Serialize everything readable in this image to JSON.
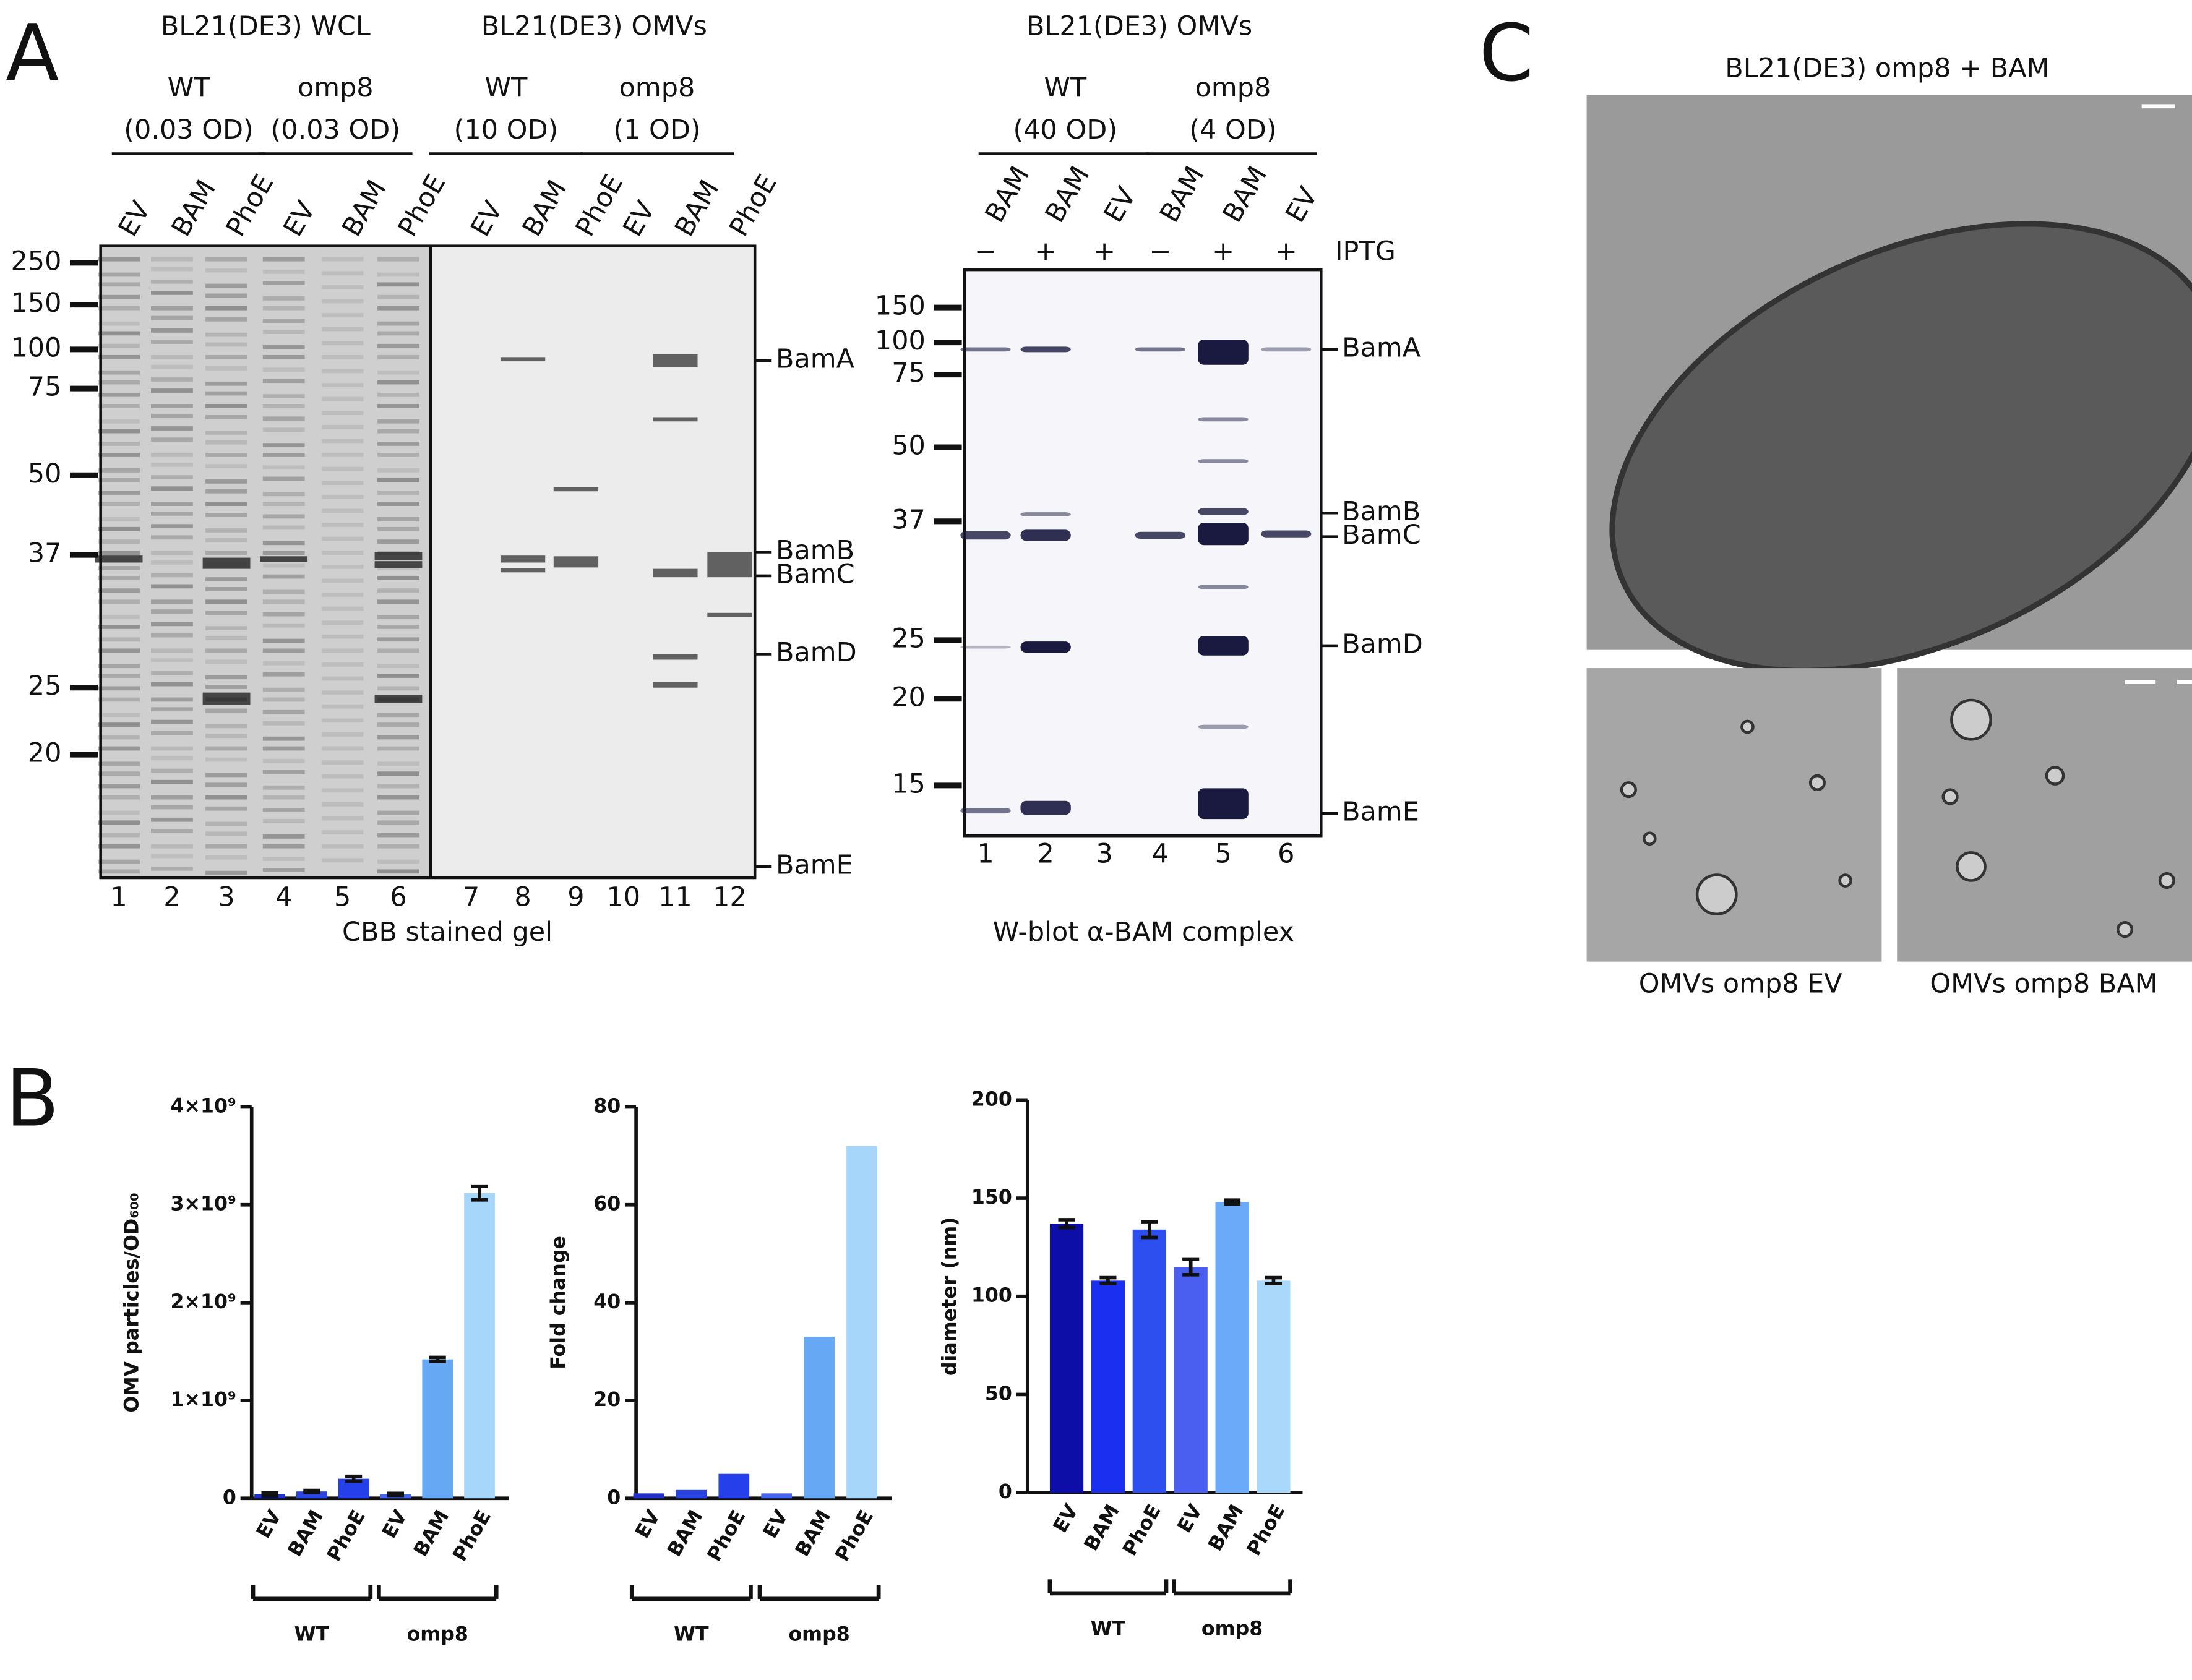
{
  "panel_labels": [
    "A",
    "B",
    "C"
  ],
  "gel": {
    "headers": [
      "BL21(DE3) WCL",
      "BL21(DE3) OMVs"
    ],
    "conditions": [
      [
        "WT",
        "(0.03 OD)"
      ],
      [
        "omp8",
        "(0.03 OD)"
      ],
      [
        "WT",
        "(10 OD)"
      ],
      [
        "omp8",
        "(1 OD)"
      ]
    ],
    "lanes": [
      "EV",
      "BAM",
      "PhoE",
      "EV",
      "BAM",
      "PhoE",
      "EV",
      "BAM",
      "PhoE",
      "EV",
      "BAM",
      "PhoE"
    ],
    "markers": [
      "250",
      "150",
      "100",
      "75",
      "50",
      "37",
      "25",
      "20"
    ],
    "bands": [
      "BamA",
      "BamB",
      "BamC",
      "BamD",
      "BamE"
    ],
    "lane_numbers": [
      "1",
      "2",
      "3",
      "4",
      "5",
      "6",
      "7",
      "8",
      "9",
      "10",
      "11",
      "12"
    ],
    "caption": "CBB stained gel"
  },
  "blot": {
    "header": "BL21(DE3) OMVs",
    "conditions": [
      [
        "WT",
        "(40 OD)"
      ],
      [
        "omp8",
        "(4 OD)"
      ]
    ],
    "lanes": [
      "BAM",
      "BAM",
      "EV",
      "BAM",
      "BAM",
      "EV"
    ],
    "iptg": [
      "−",
      "+",
      "+",
      "−",
      "+",
      "+"
    ],
    "iptg_label": "IPTG",
    "markers": [
      "150",
      "100",
      "75",
      "50",
      "37",
      "25",
      "20",
      "15"
    ],
    "bands": [
      "BamA",
      "BamB",
      "BamC",
      "BamD",
      "BamE"
    ],
    "lane_numbers": [
      "1",
      "2",
      "3",
      "4",
      "5",
      "6"
    ],
    "caption": "W-blot α-BAM complex"
  },
  "micrograph": {
    "title": "BL21(DE3) omp8 + BAM",
    "captions": [
      "OMVs omp8 EV",
      "OMVs omp8 BAM"
    ]
  },
  "chart_data": [
    {
      "type": "bar",
      "ylabel": "OMV particles/OD₆₀₀",
      "categories": [
        "EV",
        "BAM",
        "PhoE",
        "EV",
        "BAM",
        "PhoE"
      ],
      "groups": [
        "WT",
        "omp8"
      ],
      "values": [
        40000000,
        70000000,
        200000000,
        40000000,
        1420000000,
        3120000000
      ],
      "errors": [
        15000000,
        10000000,
        25000000,
        10000000,
        20000000,
        70000000
      ],
      "colors": [
        "#2030c8",
        "#2a44e0",
        "#2540ea",
        "#4766f0",
        "#66a8f4",
        "#a6d6fa"
      ],
      "ylim": [
        0,
        4000000000
      ],
      "yticks": [
        0,
        {
          "value": 1000000000,
          "label": "1×10⁹"
        },
        {
          "value": 2000000000,
          "label": "2×10⁹"
        },
        {
          "value": 3000000000,
          "label": "3×10⁹"
        },
        {
          "value": 4000000000,
          "label": "4×10⁹"
        }
      ]
    },
    {
      "type": "bar",
      "ylabel": "Fold change",
      "categories": [
        "EV",
        "BAM",
        "PhoE",
        "EV",
        "BAM",
        "PhoE"
      ],
      "groups": [
        "WT",
        "omp8"
      ],
      "values": [
        1,
        1.7,
        5,
        1,
        33,
        72
      ],
      "colors": [
        "#2030c8",
        "#2a44e0",
        "#2540ea",
        "#4766f0",
        "#66a8f4",
        "#a6d6fa"
      ],
      "ylim": [
        0,
        80
      ],
      "yticks": [
        0,
        20,
        40,
        60,
        80
      ]
    },
    {
      "type": "bar",
      "ylabel": "diameter (nm)",
      "categories": [
        "EV",
        "BAM",
        "PhoE",
        "EV",
        "BAM",
        "PhoE"
      ],
      "groups": [
        "WT",
        "omp8"
      ],
      "values": [
        137,
        108,
        134,
        115,
        148,
        108
      ],
      "errors": [
        2,
        1.5,
        4,
        4,
        1,
        1.5
      ],
      "colors": [
        "#0d0da8",
        "#1a2ff0",
        "#2e4ff0",
        "#4a5ff0",
        "#6aaaf8",
        "#aad8fa"
      ],
      "ylim": [
        0,
        200
      ],
      "yticks": [
        0,
        50,
        100,
        150,
        200
      ]
    }
  ]
}
